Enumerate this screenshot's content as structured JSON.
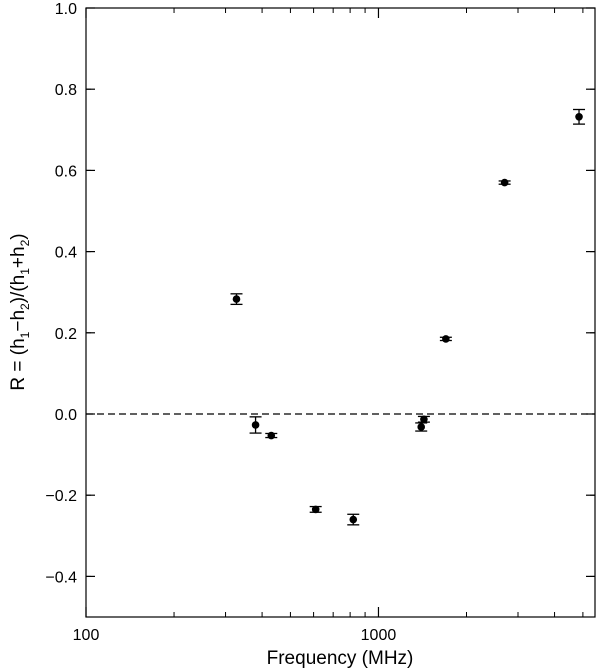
{
  "chart_data": {
    "type": "scatter",
    "xlabel": "Frequency (MHz)",
    "ylabel": {
      "parts": [
        "R = (h",
        "1",
        "−h",
        "2",
        ")/(h",
        "1",
        "+h",
        "2",
        ")"
      ]
    },
    "x_scale": "log",
    "xlim": [
      100,
      5500
    ],
    "ylim": [
      -0.5,
      1.0
    ],
    "x_tick_labels": [
      {
        "value": 100,
        "label": "100"
      },
      {
        "value": 1000,
        "label": "1000"
      }
    ],
    "y_tick_labels": [
      {
        "value": 1.0,
        "label": "1.0"
      },
      {
        "value": 0.8,
        "label": "0.8"
      },
      {
        "value": 0.6,
        "label": "0.6"
      },
      {
        "value": 0.4,
        "label": "0.4"
      },
      {
        "value": 0.2,
        "label": "0.2"
      },
      {
        "value": 0.0,
        "label": "0.0"
      },
      {
        "value": -0.2,
        "label": "−0.2"
      },
      {
        "value": -0.4,
        "label": "−0.4"
      }
    ],
    "reference_line": {
      "y": 0.0,
      "style": "dashed"
    },
    "points": [
      {
        "x": 327,
        "y": 0.283,
        "err": 0.013
      },
      {
        "x": 380,
        "y": -0.027,
        "err": 0.02
      },
      {
        "x": 430,
        "y": -0.053,
        "err": 0.005
      },
      {
        "x": 610,
        "y": -0.235,
        "err": 0.007
      },
      {
        "x": 820,
        "y": -0.26,
        "err": 0.013
      },
      {
        "x": 1400,
        "y": -0.032,
        "err": 0.01
      },
      {
        "x": 1430,
        "y": -0.013,
        "err": 0.007
      },
      {
        "x": 1700,
        "y": 0.185,
        "err": 0.004
      },
      {
        "x": 2700,
        "y": 0.57,
        "err": 0.004
      },
      {
        "x": 4850,
        "y": 0.732,
        "err": 0.018
      }
    ]
  }
}
